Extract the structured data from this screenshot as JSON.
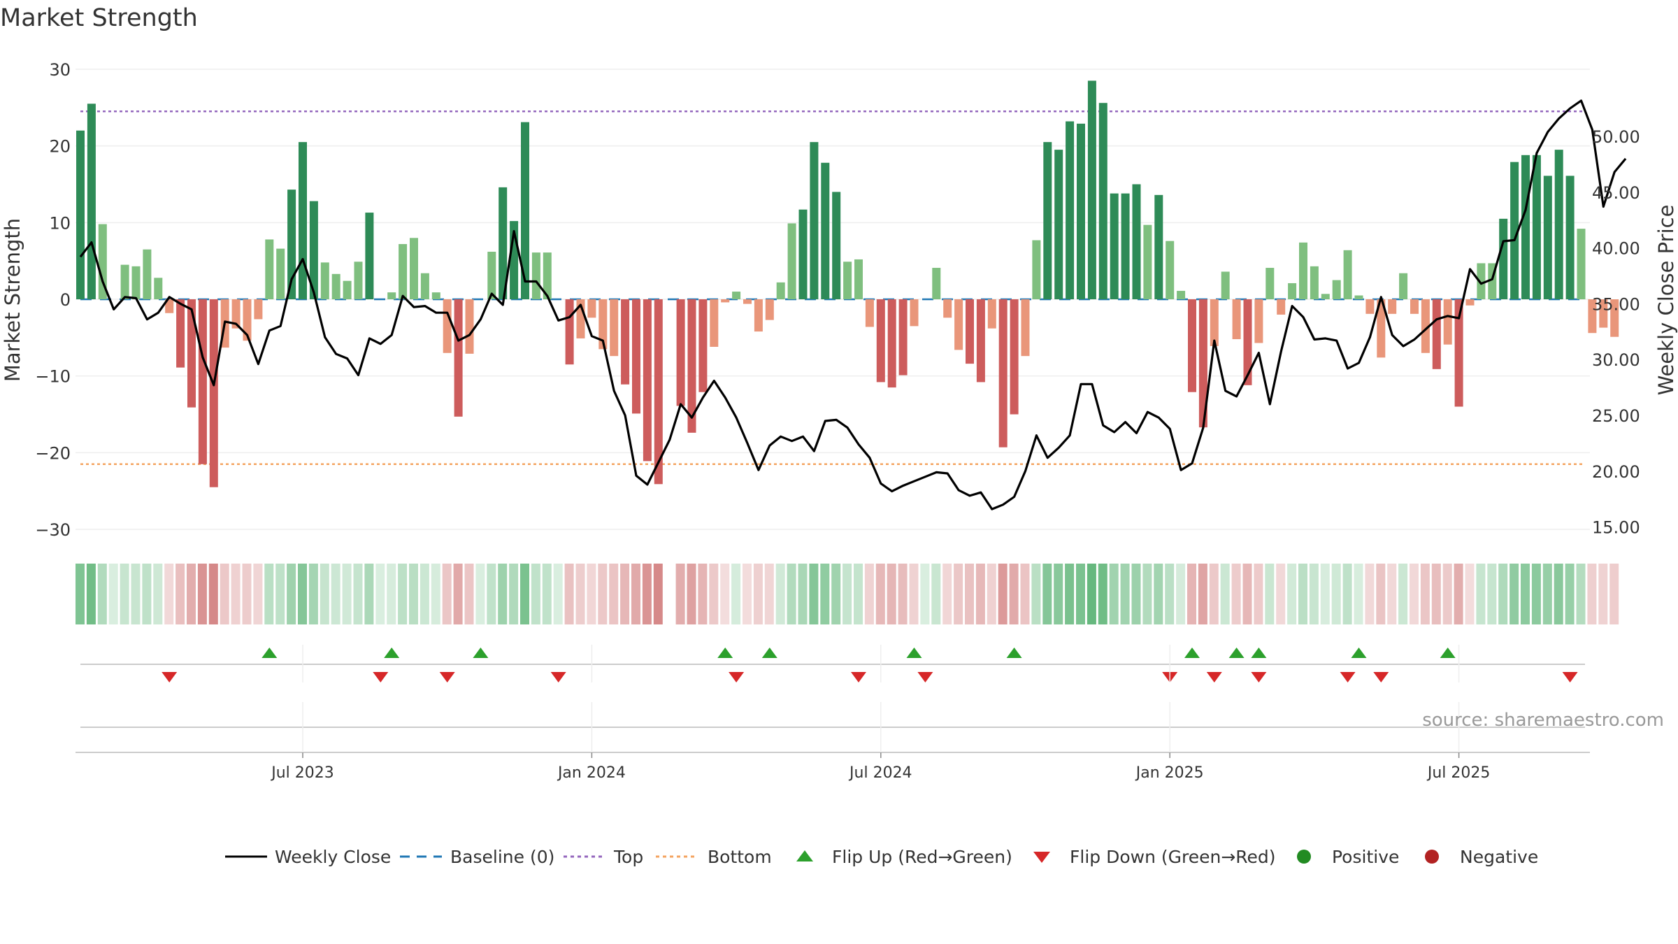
{
  "chart_data": {
    "type": "bar+line",
    "title": "Market Strength",
    "ylabel": "Market Strength",
    "y2label": "Weekly Close Price",
    "ylim": [
      -31,
      31
    ],
    "y2lim": [
      14.1,
      56.7
    ],
    "yticks": [
      30,
      20,
      10,
      0,
      -10,
      -20,
      -30
    ],
    "yticklabels": [
      "30",
      "20",
      "10",
      "0",
      "−10",
      "−20",
      "−30"
    ],
    "y2ticks": [
      50,
      45,
      40,
      35,
      30,
      25,
      20,
      15
    ],
    "y2ticklabels": [
      "50.00",
      "45.00",
      "40.00",
      "35.00",
      "30.00",
      "25.00",
      "20.00",
      "15.00"
    ],
    "xticklabels": [
      "Jul 2023",
      "Jan 2024",
      "Jul 2024",
      "Jan 2025",
      "Jul 2025"
    ],
    "xtick_week_index": [
      20,
      46,
      72,
      98,
      124
    ],
    "top_line": 24.5,
    "bottom_line": -21.5,
    "baseline": 0,
    "colors": {
      "pos_strong": "#2e8b57",
      "pos_light": "#7fbf7f",
      "neg_strong": "#cd5c5c",
      "neg_light": "#e9967a",
      "close": "#000000",
      "top": "#9467bd",
      "bottom": "#f4a460",
      "baseline": "#1f77b4",
      "flip_up": "#2ca02c",
      "flip_down": "#d62728",
      "positive": "#228b22",
      "negative": "#b22222"
    },
    "series": [
      {
        "name": "Market Strength",
        "values": [
          22,
          25.5,
          9.8,
          0,
          4.5,
          4.3,
          6.5,
          2.8,
          -1.8,
          -8.9,
          -14.1,
          -21.5,
          -24.5,
          -6.3,
          -3.8,
          -5.4,
          -2.6,
          7.8,
          6.6,
          14.3,
          20.5,
          12.8,
          4.8,
          3.3,
          2.4,
          4.9,
          11.3,
          0,
          0.9,
          7.2,
          8,
          3.4,
          0.9,
          -7,
          -15.3,
          -7.1,
          0,
          6.2,
          14.6,
          10.2,
          23.1,
          6.1,
          6.1,
          0,
          -8.5,
          -5.1,
          -2.4,
          -6.5,
          -7.4,
          -11.1,
          -14.9,
          -21.1,
          -24.1,
          0,
          -13.9,
          -17.4,
          -12.1,
          -6.2,
          -0.4,
          1,
          -0.6,
          -4.2,
          -2.7,
          2.2,
          9.9,
          11.7,
          20.5,
          17.8,
          14,
          4.9,
          5.2,
          -3.6,
          -10.8,
          -11.5,
          -9.9,
          -3.5,
          0,
          4.1,
          -2.4,
          -6.6,
          -8.4,
          -10.8,
          -3.8,
          -19.3,
          -15,
          -7.4,
          7.7,
          20.5,
          19.5,
          23.2,
          22.9,
          28.5,
          25.6,
          13.8,
          13.8,
          15,
          9.7,
          13.6,
          7.6,
          1.1,
          -12.1,
          -16.7,
          -6.1,
          3.6,
          -5.2,
          -11.2,
          -5.7,
          4.1,
          -2,
          2.1,
          7.4,
          4.3,
          0.7,
          2.5,
          6.4,
          0.5,
          -1.9,
          -7.6,
          -1.9,
          3.4,
          -1.9,
          -7,
          -9.1,
          -5.9,
          -14,
          -0.8,
          4.7,
          4.7,
          10.5,
          17.9,
          18.8,
          18.8,
          16.1,
          19.5,
          16.1,
          9.2,
          -4.4,
          -3.7,
          -4.9
        ]
      },
      {
        "name": "Weekly Close",
        "values": [
          39.2,
          40.5,
          37.0,
          34.5,
          35.6,
          35.5,
          33.6,
          34.2,
          35.6,
          35.0,
          34.5,
          30.2,
          27.7,
          33.4,
          33.2,
          32.2,
          29.6,
          32.6,
          33.0,
          37.2,
          39.0,
          36.0,
          32.0,
          30.5,
          30.1,
          28.6,
          31.9,
          31.4,
          32.2,
          35.7,
          34.7,
          34.8,
          34.2,
          34.2,
          31.7,
          32.2,
          33.6,
          35.9,
          34.9,
          41.5,
          37.0,
          37.0,
          35.7,
          33.5,
          33.8,
          34.9,
          32.1,
          31.7,
          27.2,
          25.0,
          19.6,
          18.8,
          20.8,
          22.8,
          26.0,
          24.8,
          26.6,
          28.1,
          26.6,
          24.8,
          22.5,
          20.1,
          22.3,
          23.1,
          22.7,
          23.1,
          21.8,
          24.5,
          24.6,
          23.9,
          22.4,
          21.2,
          18.9,
          18.2,
          18.7,
          19.1,
          19.5,
          19.9,
          19.8,
          18.3,
          17.8,
          18.1,
          16.6,
          17.0,
          17.7,
          20.0,
          23.2,
          21.2,
          22.1,
          23.2,
          27.8,
          27.8,
          24.1,
          23.5,
          24.4,
          23.4,
          25.3,
          24.8,
          23.8,
          20.1,
          20.7,
          23.9,
          31.7,
          27.2,
          26.7,
          28.6,
          30.6,
          26.0,
          30.7,
          34.8,
          33.8,
          31.8,
          31.9,
          31.7,
          29.2,
          29.7,
          32.0,
          35.6,
          32.2,
          31.2,
          31.8,
          32.7,
          33.6,
          33.9,
          33.7,
          38.1,
          36.8,
          37.2,
          40.6,
          40.7,
          43.4,
          48.5,
          50.4,
          51.6,
          52.5,
          53.2,
          50.6,
          43.7,
          46.8,
          48.0
        ]
      }
    ],
    "flip_up_weeks": [
      17,
      28,
      36,
      58,
      62,
      75,
      84,
      100,
      104,
      106,
      115,
      123
    ],
    "flip_down_weeks": [
      8,
      27,
      33,
      43,
      59,
      70,
      76,
      98,
      102,
      106,
      114,
      117,
      134
    ],
    "legend": {
      "position": "bottom",
      "entries": [
        "Weekly Close",
        "Baseline (0)",
        "Top",
        "Bottom",
        "Flip Up (Red→Green)",
        "Flip Down (Green→Red)",
        "Positive",
        "Negative"
      ]
    },
    "source": "source: sharemaestro.com"
  }
}
